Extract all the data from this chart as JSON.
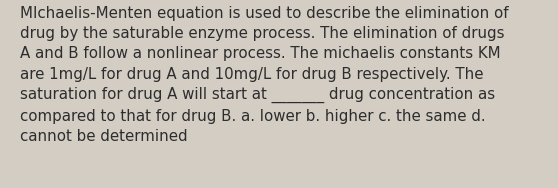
{
  "lines": [
    "MIchaelis-Menten equation is used to describe the elimination of",
    "drug by the saturable enzyme process. The elimination of drugs",
    "A and B follow a nonlinear process. The michaelis constants KM",
    "are 1mg/L for drug A and 10mg/L for drug B respectively. The",
    "saturation for drug A will start at _______ drug concentration as",
    "compared to that for drug B. a. lower b. higher c. the same d.",
    "cannot be determined"
  ],
  "background_color": "#d3cdc4",
  "text_color": "#2d2d2d",
  "font_size": 10.8,
  "fig_width": 5.58,
  "fig_height": 1.88,
  "dpi": 100
}
